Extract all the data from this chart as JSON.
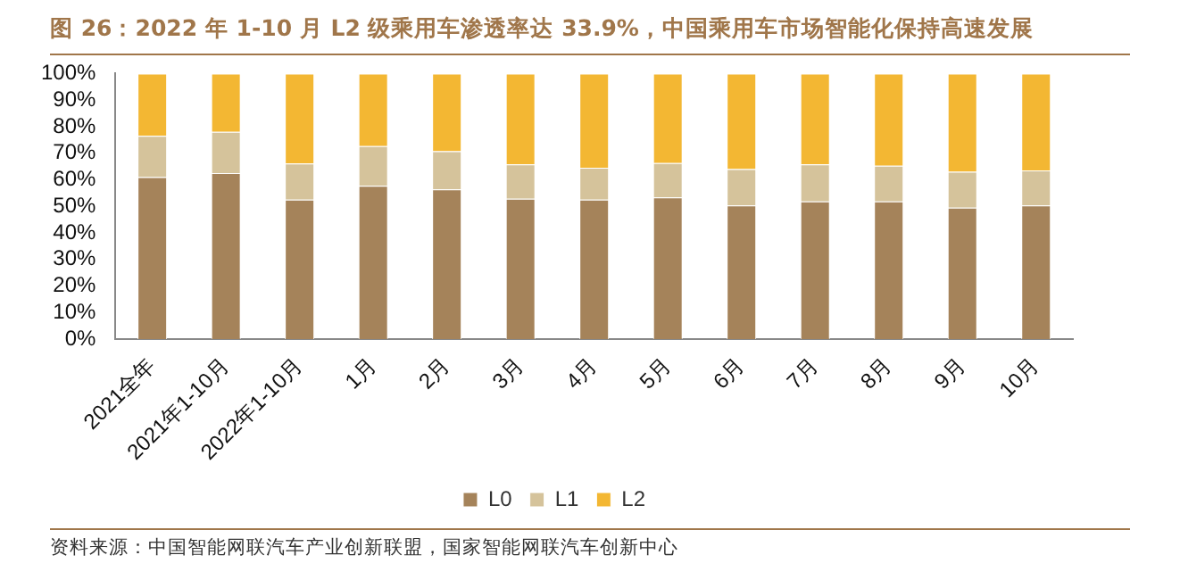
{
  "chart_data": {
    "type": "bar",
    "stacked": true,
    "title": "图 26：2022 年 1-10 月 L2 级乘用车渗透率达 33.9%，中国乘用车市场智能化保持高速发展",
    "categories": [
      "2021全年",
      "2021年1-10月",
      "2022年1-10月",
      "1月",
      "2月",
      "3月",
      "4月",
      "5月",
      "6月",
      "7月",
      "8月",
      "9月",
      "10月"
    ],
    "series": [
      {
        "name": "L0",
        "color": "#a5835a",
        "values": [
          61,
          62.5,
          52.5,
          57.7,
          56.4,
          52.8,
          52.5,
          53.3,
          50.3,
          51.8,
          51.8,
          49.5,
          50.3
        ]
      },
      {
        "name": "L1",
        "color": "#d5c39b",
        "values": [
          15.5,
          15.5,
          13.6,
          15,
          14.3,
          13,
          12,
          13,
          13.7,
          14,
          13.5,
          13.5,
          13.2
        ]
      },
      {
        "name": "L2",
        "color": "#f3b733",
        "values": [
          23.5,
          22,
          33.9,
          27.3,
          29.3,
          34.2,
          35.5,
          33.7,
          36,
          34.2,
          34.7,
          37,
          36.5
        ]
      }
    ],
    "ylim": [
      0,
      100
    ],
    "yticks": [
      {
        "value": 0,
        "label": "0%"
      },
      {
        "value": 10,
        "label": "10%"
      },
      {
        "value": 20,
        "label": "20%"
      },
      {
        "value": 30,
        "label": "30%"
      },
      {
        "value": 40,
        "label": "40%"
      },
      {
        "value": 50,
        "label": "50%"
      },
      {
        "value": 60,
        "label": "60%"
      },
      {
        "value": 70,
        "label": "70%"
      },
      {
        "value": 80,
        "label": "80%"
      },
      {
        "value": 90,
        "label": "90%"
      },
      {
        "value": 100,
        "label": "100%"
      }
    ],
    "grid": false,
    "legend": "bottom",
    "annotations": [
      "资料来源：中国智能网联汽车产业创新联盟，国家智能网联汽车创新中心"
    ]
  }
}
